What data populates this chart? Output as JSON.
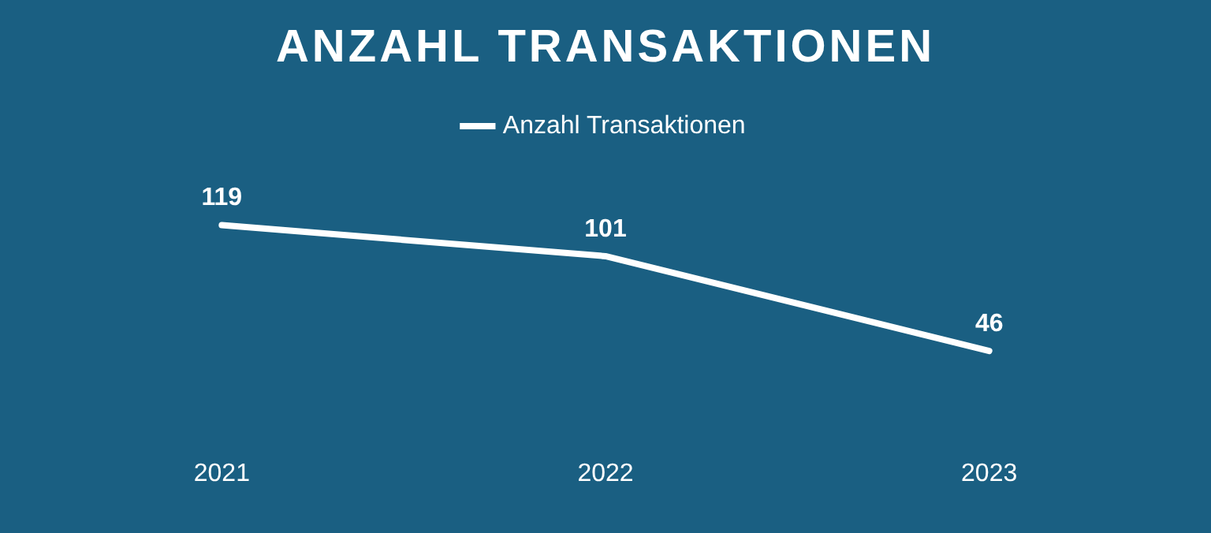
{
  "chart_data": {
    "type": "line",
    "title": "ANZAHL TRANSAKTIONEN",
    "categories": [
      "2021",
      "2022",
      "2023"
    ],
    "series": [
      {
        "name": "Anzahl Transaktionen",
        "color": "#ffffff",
        "values": [
          119,
          101,
          46
        ]
      }
    ],
    "data_labels": true,
    "legend": "top",
    "grid": false,
    "marker": "none",
    "tick_labels": "x"
  }
}
